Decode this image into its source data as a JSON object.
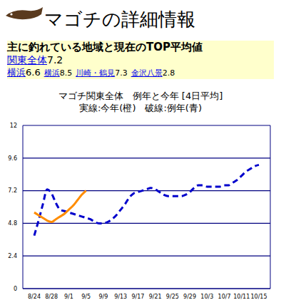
{
  "header": {
    "title": "マゴチの詳細情報",
    "box_title": "主に釣れている地域と現在のTOP平均値",
    "regions": [
      {
        "name": "関東全体",
        "value": 7.2
      },
      {
        "name": "横浜",
        "value": 6.6
      },
      {
        "name": "横浜",
        "value": 8.5
      },
      {
        "name": "川崎・鶴見",
        "value": 7.3
      },
      {
        "name": "金沢八景",
        "value": 2.8
      }
    ]
  },
  "chart_data": {
    "type": "line",
    "title": "マゴチ関東全体　例年と今年 [4日平均]",
    "subtitle": "実線:今年(橙)　破線:例年(青)",
    "categories": [
      "8/24",
      null,
      null,
      null,
      "8/28",
      null,
      null,
      null,
      "9/1",
      null,
      null,
      null,
      "9/5",
      null,
      null,
      null,
      "9/9",
      null,
      null,
      null,
      "9/13",
      null,
      null,
      null,
      "9/17",
      null,
      null,
      null,
      "9/21",
      null,
      null,
      null,
      "9/25",
      null,
      null,
      null,
      "9/29",
      null,
      null,
      null,
      "10/3",
      null,
      null,
      null,
      "10/7",
      null,
      null,
      null,
      "10/11",
      null,
      null,
      null,
      "10/15"
    ],
    "series": [
      {
        "color": "#0000cc",
        "line_style": "dashed",
        "marker": "none",
        "values": [
          3.9,
          5.0,
          6.2,
          7.3,
          7.0,
          6.3,
          5.8,
          5.7,
          5.6,
          5.5,
          5.4,
          5.3,
          5.2,
          5.1,
          4.9,
          4.8,
          4.8,
          4.9,
          5.1,
          5.4,
          5.8,
          6.2,
          6.7,
          7.0,
          7.1,
          7.2,
          7.3,
          7.4,
          7.3,
          7.1,
          6.9,
          6.8,
          6.8,
          6.8,
          6.8,
          6.9,
          7.1,
          7.4,
          7.6,
          7.6,
          7.5,
          7.5,
          7.5,
          7.5,
          7.6,
          7.6,
          7.8,
          8.0,
          8.3,
          8.6,
          8.8,
          9.0,
          9.1
        ]
      },
      {
        "color": "#ff8c00",
        "line_style": "solid",
        "marker": "none",
        "values": [
          5.6,
          5.4,
          5.2,
          5.0,
          4.9,
          5.1,
          5.3,
          5.5,
          5.8,
          6.1,
          6.5,
          6.9,
          7.2,
          null,
          null,
          null,
          null,
          null,
          null,
          null,
          null,
          null,
          null,
          null,
          null,
          null,
          null,
          null,
          null,
          null,
          null,
          null,
          null,
          null,
          null,
          null,
          null,
          null,
          null,
          null,
          null,
          null,
          null,
          null,
          null,
          null,
          null,
          null,
          null,
          null,
          null,
          null,
          null
        ]
      }
    ],
    "ylim": [
      0,
      12
    ],
    "yticks": [
      0,
      2.4,
      4.8,
      7.2,
      9.6,
      12
    ],
    "grid": true
  }
}
